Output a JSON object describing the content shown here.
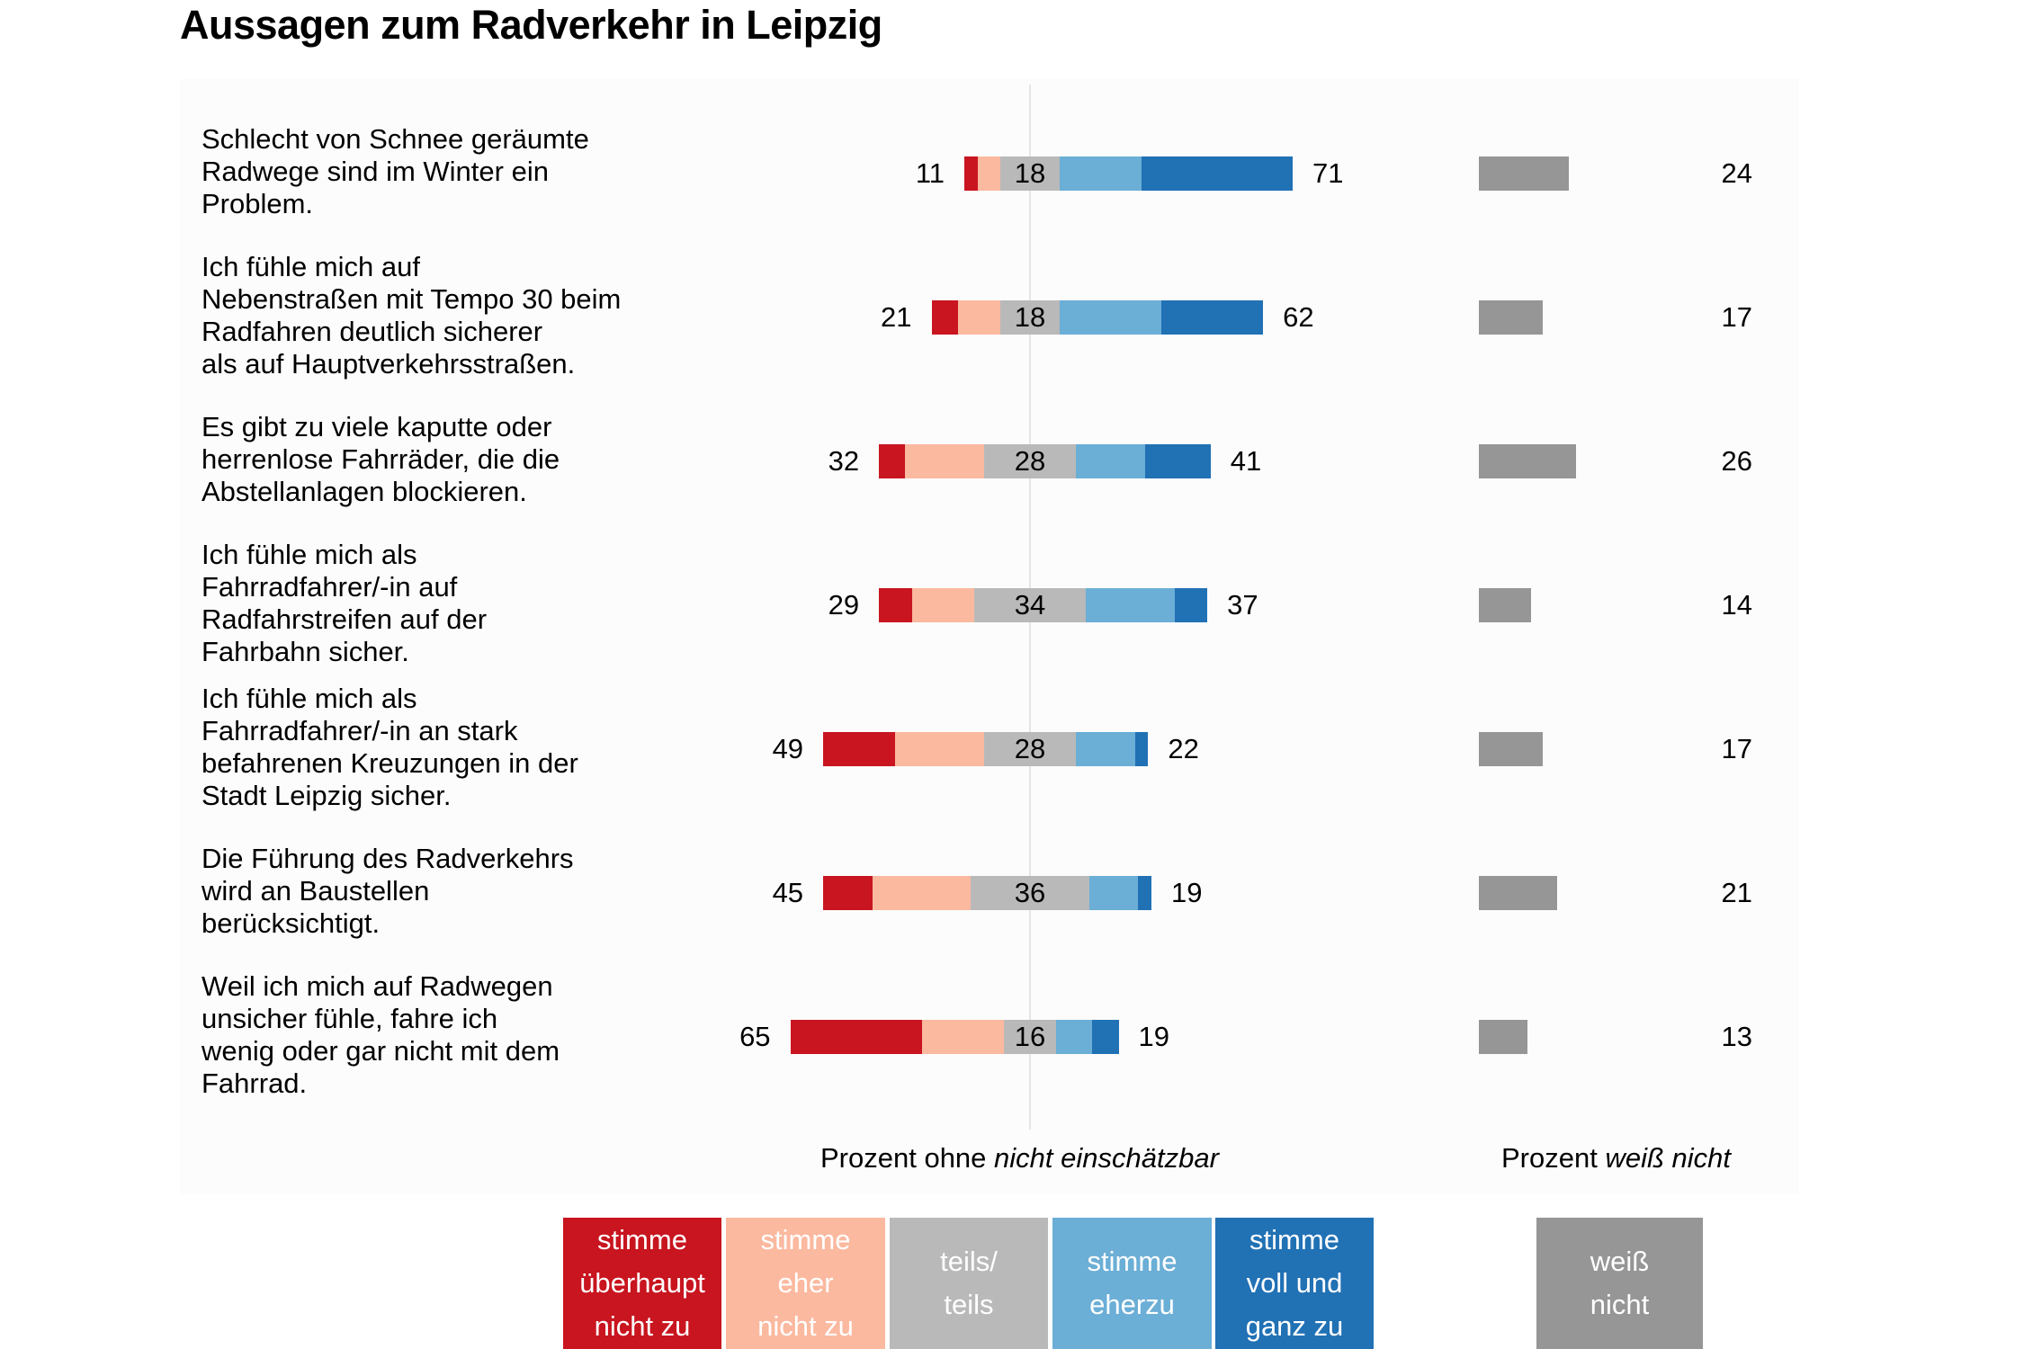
{
  "chart_data": {
    "type": "bar",
    "subtype": "diverging-stacked-horizontal",
    "title": "Aussagen zum Radverkehr in Leipzig",
    "xlabel_main": {
      "prefix": "Prozent ohne ",
      "italic": "nicht einschätzbar"
    },
    "xlabel_side": {
      "prefix": "Prozent ",
      "italic": "weiß nicht"
    },
    "categories": [
      "Schlecht von Schnee geräumte\nRadwege sind im Winter ein\nProblem.",
      "Ich fühle mich auf\nNebenstraßen mit Tempo 30 beim\nRadfahren deutlich sicherer\nals auf Hauptverkehrsstraßen.",
      "Es gibt zu viele kaputte oder\nherrenlose Fahrräder, die die\nAbstellanlagen blockieren.",
      "Ich fühle mich als\nFahrradfahrer/-in auf\nRadfahrstreifen auf der\nFahrbahn sicher.",
      "Ich fühle mich als\nFahrradfahrer/-in an stark\nbefahrenen Kreuzungen in der\nStadt Leipzig sicher.",
      "Die Führung des Radverkehrs\nwird an Baustellen\nberücksichtigt.",
      "Weil ich mich auf Radwegen\nunsicher fühle, fahre ich\nwenig oder gar nicht mit dem\nFahrrad."
    ],
    "series": [
      {
        "name": "stimme überhaupt nicht zu",
        "color": "#c8151f",
        "values": [
          4,
          8,
          8,
          10,
          22,
          15,
          40
        ]
      },
      {
        "name": "stimme eher nicht zu",
        "color": "#fbb99f",
        "values": [
          7,
          13,
          24,
          19,
          27,
          30,
          25
        ]
      },
      {
        "name": "teils/teils",
        "color": "#b9b9b9",
        "values": [
          18,
          18,
          28,
          34,
          28,
          36,
          16
        ]
      },
      {
        "name": "stimme eher zu",
        "color": "#6baed6",
        "values": [
          25,
          31,
          21,
          27,
          18,
          15,
          11
        ]
      },
      {
        "name": "stimme voll und ganz zu",
        "color": "#2171b5",
        "values": [
          46,
          31,
          20,
          10,
          4,
          4,
          8
        ]
      }
    ],
    "labels_disagree_total": [
      "11",
      "21",
      "32",
      "29",
      "49",
      "45",
      "65"
    ],
    "labels_neutral": [
      "18",
      "18",
      "28",
      "34",
      "28",
      "36",
      "16"
    ],
    "labels_agree_total": [
      "71",
      "62",
      "41",
      "37",
      "22",
      "19",
      "19"
    ],
    "weiss_nicht": {
      "name": "weiß nicht",
      "color": "#969696",
      "values": [
        24,
        17,
        26,
        14,
        17,
        21,
        13
      ],
      "labels": [
        "24",
        "17",
        "26",
        "14",
        "17",
        "21",
        "13"
      ]
    },
    "legend": [
      {
        "label": "stimme\nüberhaupt\nnicht zu",
        "color": "#c8151f"
      },
      {
        "label": "stimme\neher\nnicht zu",
        "color": "#fbb99f"
      },
      {
        "label": "teils/\nteils",
        "color": "#b9b9b9"
      },
      {
        "label": "stimme\neherzu",
        "color": "#6baed6"
      },
      {
        "label": "stimme\nvoll und\nganz zu",
        "color": "#2171b5"
      },
      {
        "label": "weiß\nnicht",
        "color": "#969696"
      }
    ],
    "legend_position": "bottom",
    "center": "middle of teils/teils"
  }
}
